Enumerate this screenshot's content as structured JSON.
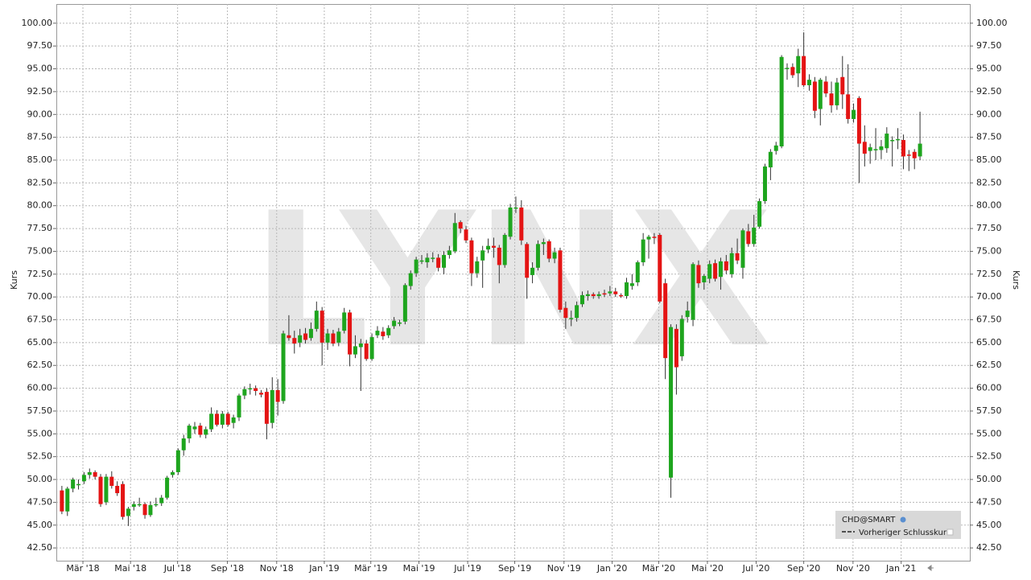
{
  "chart_data": {
    "type": "candlestick",
    "y_label": "Kurs",
    "ylim": [
      41.1,
      102.1
    ],
    "xlim": [
      -1,
      164
    ],
    "grid": true,
    "watermark": "LYNX",
    "legend_items": [
      "Vorheriger Schlusskurs"
    ],
    "yticks": [
      {
        "value": 42.5,
        "label": "42.50"
      },
      {
        "value": 45,
        "label": "45.00"
      },
      {
        "value": 47.5,
        "label": "47.50"
      },
      {
        "value": 50,
        "label": "50.00"
      },
      {
        "value": 52.5,
        "label": "52.50"
      },
      {
        "value": 55,
        "label": "55.00"
      },
      {
        "value": 57.5,
        "label": "57.50"
      },
      {
        "value": 60,
        "label": "60.00"
      },
      {
        "value": 62.5,
        "label": "62.50"
      },
      {
        "value": 65,
        "label": "65.00"
      },
      {
        "value": 67.5,
        "label": "67.50"
      },
      {
        "value": 70,
        "label": "70.00"
      },
      {
        "value": 72.5,
        "label": "72.50"
      },
      {
        "value": 75,
        "label": "75.00"
      },
      {
        "value": 77.5,
        "label": "77.50"
      },
      {
        "value": 80,
        "label": "80.00"
      },
      {
        "value": 82.5,
        "label": "82.50"
      },
      {
        "value": 85,
        "label": "85.00"
      },
      {
        "value": 87.5,
        "label": "87.50"
      },
      {
        "value": 90,
        "label": "90.00"
      },
      {
        "value": 92.5,
        "label": "92.50"
      },
      {
        "value": 95,
        "label": "95.00"
      },
      {
        "value": 97.5,
        "label": "97.50"
      },
      {
        "value": 100,
        "label": "100.00"
      }
    ],
    "xticks": [
      {
        "value": 3.8,
        "label": "Mär '18"
      },
      {
        "value": 12.4,
        "label": "Mai '18"
      },
      {
        "value": 20.9,
        "label": "Jul '18"
      },
      {
        "value": 29.9,
        "label": "Sep '18"
      },
      {
        "value": 38.8,
        "label": "Nov '18"
      },
      {
        "value": 47.4,
        "label": "Jan '19"
      },
      {
        "value": 55.8,
        "label": "Mär '19"
      },
      {
        "value": 64.5,
        "label": "Mai '19"
      },
      {
        "value": 73.3,
        "label": "Jul '19"
      },
      {
        "value": 81.8,
        "label": "Sep '19"
      },
      {
        "value": 90.7,
        "label": "Nov '19"
      },
      {
        "value": 99.4,
        "label": "Jan '20"
      },
      {
        "value": 107.8,
        "label": "Mär '20"
      },
      {
        "value": 116.6,
        "label": "Mai '20"
      },
      {
        "value": 125.4,
        "label": "Jul '20"
      },
      {
        "value": 134,
        "label": "Sep '20"
      },
      {
        "value": 142.9,
        "label": "Nov '20"
      },
      {
        "value": 151.6,
        "label": "Jan '21"
      }
    ],
    "up_color": "#1ea51e",
    "down_color": "#e41414",
    "series": [
      {
        "name": "CHD@SMART",
        "ohlc": [
          [
            48.8,
            49.3,
            46.2,
            46.5
          ],
          [
            46.5,
            49.2,
            46.0,
            49.0
          ],
          [
            49.0,
            50.2,
            48.6,
            50.0
          ],
          [
            49.5,
            50.0,
            48.9,
            49.5
          ],
          [
            49.8,
            50.8,
            49.5,
            50.5
          ],
          [
            50.5,
            51.2,
            50.1,
            50.8
          ],
          [
            50.8,
            51.0,
            50.0,
            50.3
          ],
          [
            50.3,
            50.6,
            47.0,
            47.3
          ],
          [
            47.5,
            50.6,
            47.2,
            50.3
          ],
          [
            50.3,
            50.9,
            49.0,
            49.3
          ],
          [
            49.3,
            49.8,
            48.2,
            48.5
          ],
          [
            49.5,
            49.8,
            45.6,
            45.9
          ],
          [
            46.0,
            47.0,
            44.9,
            46.8
          ],
          [
            47.0,
            47.6,
            46.6,
            47.3
          ],
          [
            47.3,
            48.0,
            47.0,
            47.3
          ],
          [
            47.3,
            47.5,
            45.7,
            46.1
          ],
          [
            46.1,
            47.6,
            45.9,
            47.2
          ],
          [
            47.3,
            48.0,
            47.0,
            47.3
          ],
          [
            47.4,
            48.3,
            47.1,
            48.0
          ],
          [
            48.0,
            50.4,
            47.8,
            50.2
          ],
          [
            50.5,
            51.0,
            50.2,
            50.8
          ],
          [
            50.8,
            53.4,
            50.5,
            53.2
          ],
          [
            53.2,
            54.9,
            52.6,
            54.5
          ],
          [
            54.5,
            56.1,
            54.0,
            55.9
          ],
          [
            55.5,
            56.3,
            55.0,
            55.8
          ],
          [
            55.9,
            56.2,
            54.6,
            54.9
          ],
          [
            54.9,
            55.8,
            54.5,
            55.5
          ],
          [
            55.5,
            57.9,
            55.2,
            57.2
          ],
          [
            57.2,
            57.6,
            55.8,
            56.0
          ],
          [
            56.0,
            57.5,
            55.6,
            57.2
          ],
          [
            57.2,
            57.4,
            55.8,
            56.0
          ],
          [
            56.2,
            57.1,
            55.6,
            56.8
          ],
          [
            56.8,
            59.4,
            56.4,
            59.2
          ],
          [
            59.2,
            60.2,
            58.8,
            59.9
          ],
          [
            59.9,
            60.5,
            59.3,
            60.0
          ],
          [
            60.0,
            60.3,
            59.2,
            59.7
          ],
          [
            59.5,
            59.8,
            59.0,
            59.3
          ],
          [
            59.6,
            60.0,
            54.4,
            56.1
          ],
          [
            56.2,
            61.2,
            55.6,
            59.8
          ],
          [
            59.8,
            61.0,
            57.0,
            58.5
          ],
          [
            58.6,
            66.3,
            58.3,
            66.0
          ],
          [
            65.8,
            68.0,
            65.2,
            65.5
          ],
          [
            65.5,
            66.3,
            63.8,
            64.9
          ],
          [
            65.0,
            66.5,
            64.5,
            65.8
          ],
          [
            66.0,
            66.6,
            64.9,
            65.3
          ],
          [
            65.5,
            67.2,
            65.2,
            66.5
          ],
          [
            66.5,
            69.5,
            66.2,
            68.5
          ],
          [
            68.5,
            68.9,
            62.5,
            65.0
          ],
          [
            65.0,
            66.5,
            64.2,
            66.0
          ],
          [
            66.0,
            66.4,
            64.6,
            64.9
          ],
          [
            65.0,
            66.6,
            64.6,
            66.2
          ],
          [
            66.3,
            68.8,
            66.0,
            68.3
          ],
          [
            68.3,
            68.6,
            62.4,
            63.7
          ],
          [
            63.7,
            65.8,
            63.3,
            64.6
          ],
          [
            64.5,
            65.4,
            59.7,
            64.9
          ],
          [
            64.9,
            65.3,
            63.0,
            63.2
          ],
          [
            63.2,
            66.0,
            63.0,
            65.6
          ],
          [
            65.8,
            66.8,
            65.5,
            66.3
          ],
          [
            66.2,
            66.7,
            65.3,
            65.7
          ],
          [
            65.8,
            66.9,
            65.5,
            66.6
          ],
          [
            66.8,
            67.8,
            66.5,
            67.4
          ],
          [
            67.1,
            67.5,
            66.8,
            67.2
          ],
          [
            67.3,
            71.5,
            67.0,
            71.3
          ],
          [
            71.2,
            72.9,
            70.8,
            72.6
          ],
          [
            72.6,
            74.4,
            72.2,
            74.1
          ],
          [
            74.0,
            74.6,
            73.6,
            74.0
          ],
          [
            73.8,
            74.8,
            73.2,
            74.3
          ],
          [
            74.3,
            74.9,
            73.8,
            74.3
          ],
          [
            74.3,
            74.7,
            72.8,
            73.2
          ],
          [
            73.2,
            75.0,
            72.5,
            74.6
          ],
          [
            74.6,
            75.6,
            74.2,
            75.1
          ],
          [
            75.0,
            79.2,
            74.8,
            78.1
          ],
          [
            78.2,
            78.4,
            77.0,
            77.5
          ],
          [
            77.4,
            77.8,
            75.9,
            76.2
          ],
          [
            76.2,
            76.5,
            71.2,
            72.6
          ],
          [
            72.6,
            74.4,
            72.1,
            73.9
          ],
          [
            74.0,
            75.6,
            71.0,
            75.1
          ],
          [
            75.2,
            76.4,
            74.8,
            75.6
          ],
          [
            75.6,
            76.5,
            74.3,
            75.4
          ],
          [
            75.4,
            75.7,
            71.5,
            73.5
          ],
          [
            73.5,
            77.0,
            73.2,
            76.8
          ],
          [
            76.6,
            80.2,
            76.3,
            79.8
          ],
          [
            79.8,
            81.0,
            79.2,
            79.8
          ],
          [
            79.8,
            80.6,
            75.7,
            76.2
          ],
          [
            75.8,
            76.0,
            69.8,
            72.1
          ],
          [
            72.4,
            73.8,
            71.5,
            73.2
          ],
          [
            73.2,
            76.2,
            72.9,
            75.8
          ],
          [
            75.8,
            76.4,
            74.6,
            76.0
          ],
          [
            76.1,
            76.3,
            73.8,
            74.2
          ],
          [
            74.2,
            75.4,
            73.7,
            74.9
          ],
          [
            75.1,
            75.4,
            68.3,
            68.6
          ],
          [
            68.8,
            69.5,
            66.5,
            67.7
          ],
          [
            67.6,
            68.5,
            66.8,
            67.7
          ],
          [
            67.7,
            69.5,
            67.3,
            69.1
          ],
          [
            69.2,
            70.6,
            68.9,
            70.2
          ],
          [
            70.1,
            70.7,
            69.6,
            70.3
          ],
          [
            70.3,
            70.5,
            69.8,
            70.1
          ],
          [
            70.1,
            70.6,
            69.8,
            70.3
          ],
          [
            70.4,
            70.8,
            70.0,
            70.3
          ],
          [
            70.4,
            71.2,
            70.1,
            70.6
          ],
          [
            70.6,
            71.0,
            70.0,
            70.3
          ],
          [
            70.2,
            70.4,
            69.9,
            70.1
          ],
          [
            70.1,
            72.1,
            69.8,
            71.6
          ],
          [
            71.2,
            72.5,
            70.8,
            71.5
          ],
          [
            71.6,
            74.0,
            71.2,
            73.8
          ],
          [
            73.8,
            77.0,
            73.4,
            76.3
          ],
          [
            76.3,
            76.8,
            74.2,
            76.6
          ],
          [
            76.6,
            77.0,
            75.8,
            76.5
          ],
          [
            76.8,
            77.0,
            69.3,
            69.5
          ],
          [
            71.5,
            72.0,
            61.0,
            63.3
          ],
          [
            50.2,
            67.0,
            48.0,
            66.7
          ],
          [
            66.5,
            67.0,
            59.3,
            62.3
          ],
          [
            63.5,
            68.0,
            63.0,
            67.6
          ],
          [
            67.8,
            69.5,
            67.2,
            68.5
          ],
          [
            67.5,
            73.8,
            66.8,
            73.6
          ],
          [
            73.5,
            74.0,
            71.0,
            71.5
          ],
          [
            71.6,
            72.5,
            70.8,
            72.3
          ],
          [
            72.0,
            74.0,
            71.5,
            73.6
          ],
          [
            73.7,
            74.1,
            71.7,
            72.0
          ],
          [
            72.2,
            74.3,
            70.8,
            73.9
          ],
          [
            73.9,
            74.6,
            72.5,
            72.9
          ],
          [
            72.5,
            75.4,
            72.1,
            74.8
          ],
          [
            74.8,
            76.4,
            73.6,
            74.0
          ],
          [
            73.2,
            77.5,
            72.0,
            77.3
          ],
          [
            77.2,
            78.0,
            75.5,
            75.8
          ],
          [
            75.8,
            79.0,
            75.5,
            77.6
          ],
          [
            77.7,
            80.8,
            77.5,
            80.5
          ],
          [
            80.5,
            84.6,
            80.2,
            84.3
          ],
          [
            84.2,
            86.2,
            82.8,
            85.9
          ],
          [
            86.0,
            87.0,
            85.6,
            86.6
          ],
          [
            86.5,
            96.5,
            86.3,
            96.3
          ],
          [
            95.1,
            95.6,
            93.8,
            95.1
          ],
          [
            95.2,
            95.6,
            94.0,
            94.3
          ],
          [
            94.5,
            97.2,
            93.0,
            96.4
          ],
          [
            96.4,
            99.0,
            93.0,
            93.2
          ],
          [
            93.2,
            94.4,
            92.6,
            93.8
          ],
          [
            93.6,
            94.1,
            89.6,
            90.4
          ],
          [
            90.6,
            94.0,
            88.8,
            93.8
          ],
          [
            93.6,
            94.2,
            91.9,
            92.3
          ],
          [
            92.3,
            93.6,
            90.2,
            91.0
          ],
          [
            91.0,
            94.0,
            90.5,
            93.5
          ],
          [
            94.1,
            96.4,
            90.6,
            92.2
          ],
          [
            92.2,
            95.5,
            89.0,
            89.5
          ],
          [
            89.5,
            91.2,
            89.1,
            90.5
          ],
          [
            91.8,
            92.0,
            82.5,
            86.8
          ],
          [
            87.0,
            88.8,
            84.3,
            85.7
          ],
          [
            86.0,
            86.8,
            84.6,
            86.4
          ],
          [
            86.1,
            88.5,
            85.0,
            86.2
          ],
          [
            86.1,
            87.2,
            85.1,
            86.5
          ],
          [
            86.3,
            88.6,
            85.8,
            87.9
          ],
          [
            87.1,
            87.6,
            84.3,
            87.2
          ],
          [
            87.3,
            88.5,
            86.2,
            87.3
          ],
          [
            87.2,
            87.8,
            84.0,
            85.4
          ],
          [
            85.6,
            86.1,
            83.8,
            85.5
          ],
          [
            85.9,
            86.2,
            84.0,
            85.2
          ],
          [
            85.4,
            90.3,
            85.0,
            86.8
          ]
        ]
      }
    ]
  }
}
